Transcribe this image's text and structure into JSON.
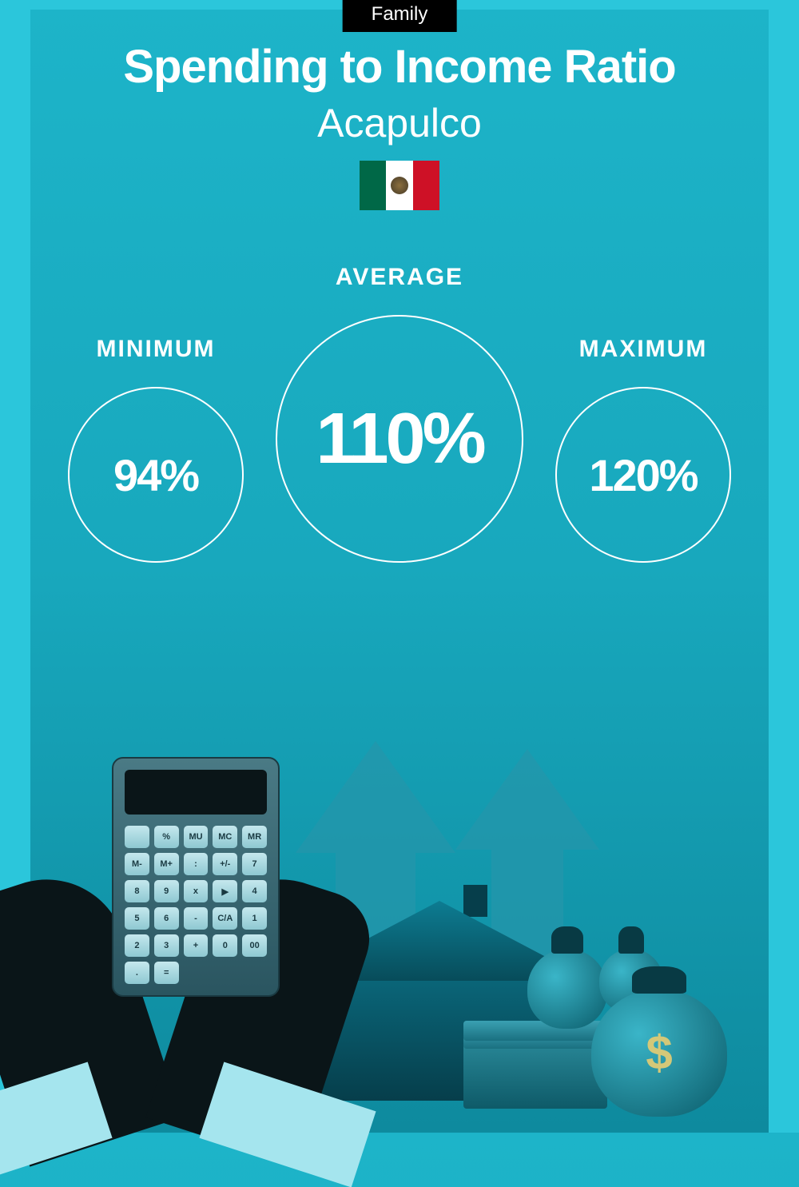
{
  "tag": "Family",
  "title": "Spending to Income Ratio",
  "city": "Acapulco",
  "flag": {
    "left": "#006847",
    "mid": "#ffffff",
    "right": "#ce1126"
  },
  "stats": {
    "min": {
      "label": "MINIMUM",
      "value": "94%",
      "circle_size": 220,
      "font_size": 56
    },
    "avg": {
      "label": "AVERAGE",
      "value": "110%",
      "circle_size": 310,
      "font_size": 90
    },
    "max": {
      "label": "MAXIMUM",
      "value": "120%",
      "circle_size": 220,
      "font_size": 56
    }
  },
  "style": {
    "bg_top": "#1db4c9",
    "bg_mid": "#18a8bd",
    "bg_bot": "#0e8a9e",
    "frame": "#2bc6db",
    "text": "#ffffff",
    "circle_stroke": "#ffffff",
    "circle_stroke_width": 2,
    "title_fontsize": 58,
    "title_weight": 800,
    "city_fontsize": 50,
    "city_weight": 300,
    "label_fontsize": 30,
    "label_weight": 800
  },
  "calc_keys": [
    "",
    "%",
    "MU",
    "MC",
    "MR",
    "M-",
    "M+",
    ":",
    "+/-",
    "7",
    "8",
    "9",
    "x",
    "▶",
    "4",
    "5",
    "6",
    "-",
    "C/A",
    "1",
    "2",
    "3",
    "+",
    "0",
    "00",
    ".",
    "="
  ]
}
